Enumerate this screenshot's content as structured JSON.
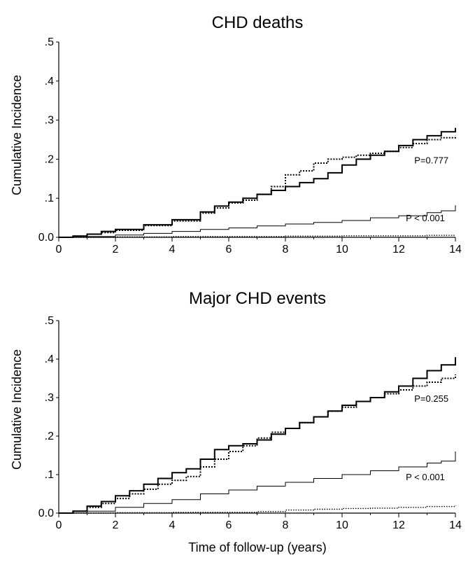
{
  "xlabel": "Time of follow-up (years)",
  "chart_data": [
    {
      "type": "line",
      "title": "CHD deaths",
      "ylabel": "Cumulative Incidence",
      "xlim": [
        0,
        14
      ],
      "ylim": [
        0,
        0.5
      ],
      "xticks": [
        "0",
        "2",
        "4",
        "6",
        "8",
        "10",
        "12",
        "14"
      ],
      "yticks": [
        "0.0",
        ".1",
        ".2",
        ".3",
        ".4",
        ".5"
      ],
      "annotations": [
        {
          "text": "P=0.777",
          "x": 12.55,
          "y": 0.198
        },
        {
          "text": "P < 0.001",
          "x": 12.25,
          "y": 0.05
        }
      ],
      "series": [
        {
          "style": "thick-solid",
          "x": [
            0,
            0.5,
            1,
            1.5,
            2,
            3,
            4,
            5,
            5.5,
            6,
            6.5,
            7,
            7.5,
            8,
            8.5,
            9,
            9.5,
            10,
            10.5,
            11,
            11.5,
            12,
            12.5,
            13,
            13.5,
            14
          ],
          "y": [
            0,
            0.003,
            0.008,
            0.015,
            0.02,
            0.032,
            0.045,
            0.065,
            0.08,
            0.09,
            0.1,
            0.11,
            0.12,
            0.13,
            0.14,
            0.15,
            0.165,
            0.185,
            0.2,
            0.21,
            0.22,
            0.235,
            0.25,
            0.26,
            0.27,
            0.28
          ]
        },
        {
          "style": "thick-dotted",
          "x": [
            0,
            0.5,
            1,
            1.5,
            2,
            3,
            4,
            5,
            5.5,
            6,
            6.5,
            7,
            7.5,
            8,
            8.5,
            9,
            9.5,
            10,
            10.5,
            11,
            11.5,
            12,
            12.5,
            13,
            13.5,
            14
          ],
          "y": [
            0,
            0.003,
            0.008,
            0.012,
            0.018,
            0.03,
            0.042,
            0.062,
            0.075,
            0.088,
            0.095,
            0.11,
            0.13,
            0.16,
            0.17,
            0.19,
            0.2,
            0.205,
            0.21,
            0.215,
            0.22,
            0.23,
            0.24,
            0.25,
            0.255,
            0.26
          ]
        },
        {
          "style": "thin-solid",
          "x": [
            0,
            1,
            2,
            3,
            4,
            5,
            6,
            7,
            8,
            9,
            10,
            11,
            12,
            13,
            13.5,
            14
          ],
          "y": [
            0,
            0.002,
            0.006,
            0.01,
            0.015,
            0.02,
            0.024,
            0.029,
            0.034,
            0.038,
            0.043,
            0.05,
            0.055,
            0.063,
            0.068,
            0.082
          ]
        },
        {
          "style": "thin-dotted",
          "x": [
            0,
            2,
            4,
            6,
            8,
            10,
            12,
            13,
            14
          ],
          "y": [
            0,
            0.001,
            0.002,
            0.002,
            0.003,
            0.004,
            0.004,
            0.005,
            0.006
          ]
        }
      ]
    },
    {
      "type": "line",
      "title": "Major CHD events",
      "ylabel": "Cumulative Incidence",
      "xlim": [
        0,
        14
      ],
      "ylim": [
        0,
        0.5
      ],
      "xticks": [
        "0",
        "2",
        "4",
        "6",
        "8",
        "10",
        "12",
        "14"
      ],
      "yticks": [
        "0.0",
        ".1",
        ".2",
        ".3",
        ".4",
        ".5"
      ],
      "annotations": [
        {
          "text": "P=0.255",
          "x": 12.55,
          "y": 0.298
        },
        {
          "text": "P < 0.001",
          "x": 12.25,
          "y": 0.095
        }
      ],
      "series": [
        {
          "style": "thick-solid",
          "x": [
            0,
            0.5,
            1,
            1.5,
            2,
            2.5,
            3,
            3.5,
            4,
            4.5,
            5,
            5.5,
            6,
            6.5,
            7,
            7.5,
            8,
            8.5,
            9,
            9.5,
            10,
            10.5,
            11,
            11.5,
            12,
            12.5,
            13,
            13.5,
            14
          ],
          "y": [
            0,
            0.005,
            0.018,
            0.03,
            0.045,
            0.058,
            0.075,
            0.09,
            0.105,
            0.115,
            0.14,
            0.165,
            0.175,
            0.18,
            0.19,
            0.205,
            0.22,
            0.235,
            0.25,
            0.265,
            0.28,
            0.29,
            0.3,
            0.315,
            0.33,
            0.35,
            0.37,
            0.385,
            0.405
          ]
        },
        {
          "style": "thick-dotted",
          "x": [
            0,
            0.5,
            1,
            1.5,
            2,
            2.5,
            3,
            3.5,
            4,
            4.5,
            5,
            5.5,
            6,
            6.5,
            7,
            7.5,
            8,
            8.5,
            9,
            9.5,
            10,
            10.5,
            11,
            11.5,
            12,
            12.5,
            13,
            13.5,
            14
          ],
          "y": [
            0,
            0.005,
            0.015,
            0.025,
            0.038,
            0.05,
            0.062,
            0.075,
            0.085,
            0.095,
            0.12,
            0.14,
            0.16,
            0.175,
            0.195,
            0.21,
            0.22,
            0.235,
            0.25,
            0.265,
            0.275,
            0.29,
            0.3,
            0.31,
            0.32,
            0.33,
            0.34,
            0.35,
            0.36
          ]
        },
        {
          "style": "thin-solid",
          "x": [
            0,
            1,
            2,
            3,
            4,
            5,
            6,
            7,
            8,
            9,
            10,
            11,
            12,
            13,
            13.5,
            14
          ],
          "y": [
            0,
            0.005,
            0.015,
            0.025,
            0.035,
            0.05,
            0.06,
            0.07,
            0.08,
            0.09,
            0.1,
            0.11,
            0.12,
            0.13,
            0.135,
            0.16
          ]
        },
        {
          "style": "thin-dotted",
          "x": [
            0,
            2,
            4,
            6,
            7,
            8,
            9,
            10,
            11,
            12,
            13,
            14
          ],
          "y": [
            0,
            0.001,
            0.002,
            0.002,
            0.004,
            0.008,
            0.01,
            0.012,
            0.013,
            0.015,
            0.017,
            0.02
          ]
        }
      ]
    }
  ]
}
